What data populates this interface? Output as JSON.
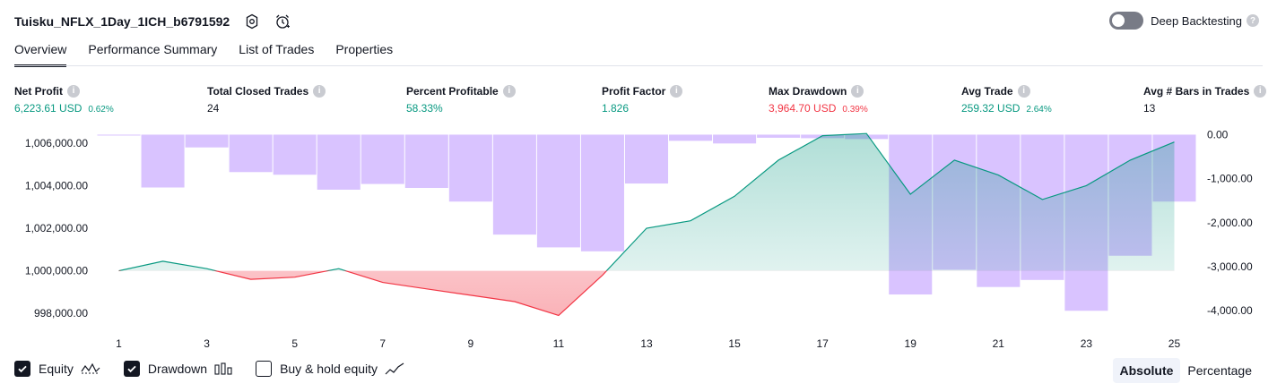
{
  "header": {
    "title": "Tuisku_NFLX_1Day_1ICH_b6791592",
    "deep_backtesting_label": "Deep Backtesting",
    "deep_backtesting_on": false
  },
  "tabs": [
    {
      "label": "Overview",
      "active": true
    },
    {
      "label": "Performance Summary",
      "active": false
    },
    {
      "label": "List of Trades",
      "active": false
    },
    {
      "label": "Properties",
      "active": false
    }
  ],
  "metrics": [
    {
      "label": "Net Profit",
      "value": "6,223.61 USD",
      "pct": "0.62%",
      "tone": "green"
    },
    {
      "label": "Total Closed Trades",
      "value": "24",
      "pct": "",
      "tone": "dark"
    },
    {
      "label": "Percent Profitable",
      "value": "58.33%",
      "pct": "",
      "tone": "green"
    },
    {
      "label": "Profit Factor",
      "value": "1.826",
      "pct": "",
      "tone": "green"
    },
    {
      "label": "Max Drawdown",
      "value": "3,964.70 USD",
      "pct": "0.39%",
      "tone": "red"
    },
    {
      "label": "Avg Trade",
      "value": "259.32 USD",
      "pct": "2.64%",
      "tone": "green"
    },
    {
      "label": "Avg # Bars in Trades",
      "value": "13",
      "pct": "",
      "tone": "dark"
    }
  ],
  "chart_data": {
    "type": "line",
    "x": [
      1,
      2,
      3,
      4,
      5,
      6,
      7,
      8,
      9,
      10,
      11,
      12,
      13,
      14,
      15,
      16,
      17,
      18,
      19,
      20,
      21,
      22,
      23,
      24,
      25
    ],
    "x_tick_labels": [
      "1",
      "3",
      "5",
      "7",
      "9",
      "11",
      "13",
      "15",
      "17",
      "19",
      "21",
      "23",
      "25"
    ],
    "left_axis_ticks": [
      "1,006,000.00",
      "1,004,000.00",
      "1,002,000.00",
      "1,000,000.00",
      "998,000.00"
    ],
    "right_axis_ticks": [
      "0.00",
      "-1,000.00",
      "-2,000.00",
      "-3,000.00",
      "-4,000.00"
    ],
    "left_ylim": [
      997500,
      1006500
    ],
    "right_ylim": [
      -4300,
      50
    ],
    "baseline": 1000000,
    "series": [
      {
        "name": "Equity",
        "axis": "left",
        "values": [
          1000000,
          1000450,
          1000100,
          999600,
          999700,
          1000100,
          999450,
          999150,
          998850,
          998550,
          997900,
          999800,
          1002000,
          1002350,
          1003500,
          1005200,
          1006350,
          1006450,
          1003600,
          1005200,
          1004500,
          1003350,
          1004000,
          1005200,
          1006050
        ]
      },
      {
        "name": "Drawdown",
        "axis": "right",
        "values": [
          -20,
          -1200,
          -290,
          -850,
          -910,
          -1250,
          -1120,
          -1210,
          -1520,
          -2270,
          -2560,
          -2650,
          -1110,
          -140,
          -200,
          -70,
          -80,
          -100,
          -3630,
          -3070,
          -3460,
          -3300,
          -4000,
          -2750,
          -1520
        ]
      }
    ],
    "colors": {
      "equity_up": "#089981",
      "equity_down": "#f23645",
      "drawdown": "#b388ff"
    }
  },
  "legend": [
    {
      "label": "Equity",
      "checked": true,
      "icon": "equity-line-icon"
    },
    {
      "label": "Drawdown",
      "checked": true,
      "icon": "drawdown-bars-icon"
    },
    {
      "label": "Buy & hold equity",
      "checked": false,
      "icon": "buy-hold-line-icon"
    }
  ],
  "modes": [
    {
      "label": "Absolute",
      "selected": true
    },
    {
      "label": "Percentage",
      "selected": false
    }
  ]
}
